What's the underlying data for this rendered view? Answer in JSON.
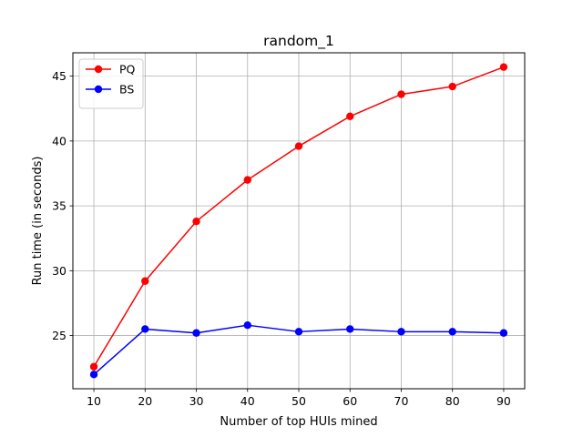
{
  "chart_data": {
    "type": "line",
    "title": "random_1",
    "xlabel": "Number of top HUIs mined",
    "ylabel": "Run time (in seconds)",
    "x": [
      10,
      20,
      30,
      40,
      50,
      60,
      70,
      80,
      90
    ],
    "xticks": [
      10,
      20,
      30,
      40,
      50,
      60,
      70,
      80,
      90
    ],
    "yticks": [
      25,
      30,
      35,
      40,
      45
    ],
    "xlim": [
      5.9,
      94.1
    ],
    "ylim": [
      20.9,
      46.8
    ],
    "grid": true,
    "legend_position": "top-left",
    "series": [
      {
        "name": "PQ",
        "color": "#ff0000",
        "marker": "circle",
        "values": [
          22.6,
          29.2,
          33.8,
          37.0,
          39.6,
          41.9,
          43.6,
          44.2,
          45.7
        ]
      },
      {
        "name": "BS",
        "color": "#0000ff",
        "marker": "circle",
        "values": [
          22.0,
          25.5,
          25.2,
          25.8,
          25.3,
          25.5,
          25.3,
          25.3,
          25.2
        ]
      }
    ]
  }
}
